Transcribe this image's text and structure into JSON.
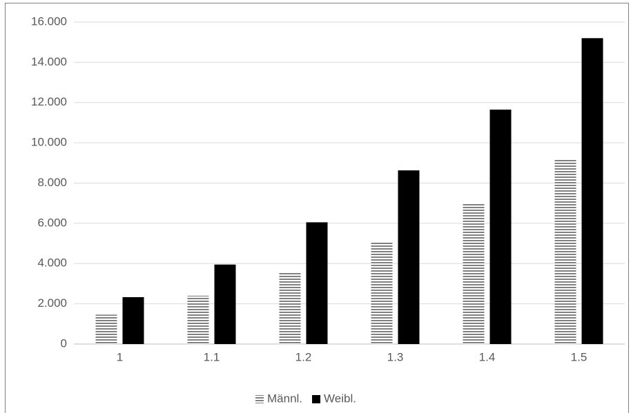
{
  "chart_data": {
    "type": "bar",
    "categories": [
      "1",
      "1.1",
      "1.2",
      "1.3",
      "1.4",
      "1.5"
    ],
    "series": [
      {
        "name": "Männl.",
        "color": "#000000",
        "pattern": "horizontal-lines",
        "values": [
          1450,
          2400,
          3600,
          5100,
          6950,
          9150
        ]
      },
      {
        "name": "Weibl.",
        "color": "#000000",
        "values": [
          2330,
          3950,
          6050,
          8630,
          11650,
          15200
        ]
      }
    ],
    "ylim": [
      0,
      16000
    ],
    "yticks": [
      0,
      {
        "value": 2000,
        "label": "2.000"
      },
      {
        "value": 4000,
        "label": "4.000"
      },
      {
        "value": 6000,
        "label": "6.000"
      },
      {
        "value": 8000,
        "label": "8.000"
      },
      {
        "value": 10000,
        "label": "10.000"
      },
      {
        "value": 12000,
        "label": "12.000"
      },
      {
        "value": 14000,
        "label": "14.000"
      },
      {
        "value": 16000,
        "label": "16.000"
      }
    ],
    "grid": true,
    "legend": "bottom"
  }
}
